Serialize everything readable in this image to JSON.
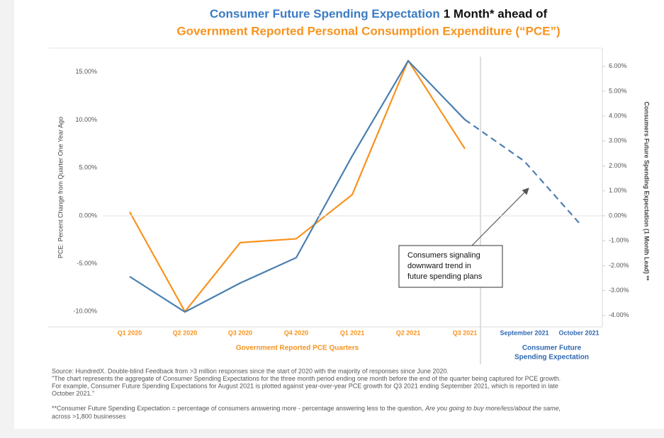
{
  "chart_data": {
    "type": "line",
    "title": {
      "part1": "Consumer Future Spending Expectation",
      "part2": "1 Month* ahead of",
      "line2": "Government Reported Personal Consumption Expenditure (“PCE”)"
    },
    "title_colors": [
      "#3b7cc4",
      "#111111",
      "#f7931e"
    ],
    "categories": [
      "Q1 2020",
      "Q2 2020",
      "Q3 2020",
      "Q4 2020",
      "Q1 2021",
      "Q2 2021",
      "Q3 2021",
      "September 2021",
      "October 2021"
    ],
    "x_groups": [
      {
        "label": [
          "Government Reported PCE Quarters"
        ],
        "color": "#f7931e",
        "count": 7
      },
      {
        "label": [
          "Consumer Future",
          "Spending Expectation"
        ],
        "color": "#2f68b0",
        "count": 2
      }
    ],
    "ylabel": "PCE: Percent Change from Quarter One Year Ago",
    "y2label": "Consumers Future Spending Expectation (1 Month Lead) **",
    "ylim": [
      -11.6,
      17.5
    ],
    "yticks": [
      {
        "value": 15,
        "label": "15.00%"
      },
      {
        "value": 10,
        "label": "10.00%"
      },
      {
        "value": 5,
        "label": "5.00%"
      },
      {
        "value": 0,
        "label": "0.00%"
      },
      {
        "value": -5,
        "label": "-5.00%"
      },
      {
        "value": -10,
        "label": "-10.00%"
      }
    ],
    "y2lim": [
      -4.46,
      6.73
    ],
    "y2ticks": [
      {
        "value": 6,
        "label": "6.00%"
      },
      {
        "value": 5,
        "label": "5.00%"
      },
      {
        "value": 4,
        "label": "4.00%"
      },
      {
        "value": 3,
        "label": "3.00%"
      },
      {
        "value": 2,
        "label": "2.00%"
      },
      {
        "value": 1,
        "label": "1.00%"
      },
      {
        "value": 0,
        "label": "0.00%"
      },
      {
        "value": -1,
        "label": "-1.00%"
      },
      {
        "value": -2,
        "label": "-2.00%"
      },
      {
        "value": -3,
        "label": "-3.00%"
      },
      {
        "value": -4,
        "label": "-4.00%"
      }
    ],
    "series": [
      {
        "color": "#f7931e",
        "values": [
          0.4,
          -10.0,
          -2.8,
          -2.4,
          2.2,
          16.2,
          7.0,
          null,
          null
        ]
      },
      {
        "color": "#4a7fb0",
        "axis": "y2",
        "dashed_after": 6,
        "values": [
          -2.44,
          -3.86,
          -2.7,
          -1.68,
          2.4,
          6.22,
          3.86,
          2.19,
          -0.28
        ]
      }
    ],
    "annotation": [
      "Consumers signaling",
      "downward trend in",
      "future spending plans"
    ],
    "footnotes": [
      "Source:  HundredX.   Double-blind Feedback from >3 million responses since the start of 2020 with the majority of responses since June 2020.",
      "\"The chart represents the aggregate of Consumer Spending Expectations for the three month period ending one month before the end of the quarter being captured for PCE growth.",
      "For example, Consumer Future Spending Expectations for August 2021 is plotted against year-over-year PCE growth for Q3 2021 ending September 2021, which is reported in late",
      "October 2021.\""
    ],
    "footnote_last": {
      "plain": "**Consumer Future Spending Expectation = percentage of consumers answering more - percentage answering less to the question, ",
      "italic": "Are you going to buy more/less/about the same,",
      "line2": "across >1,800 businesses"
    }
  }
}
